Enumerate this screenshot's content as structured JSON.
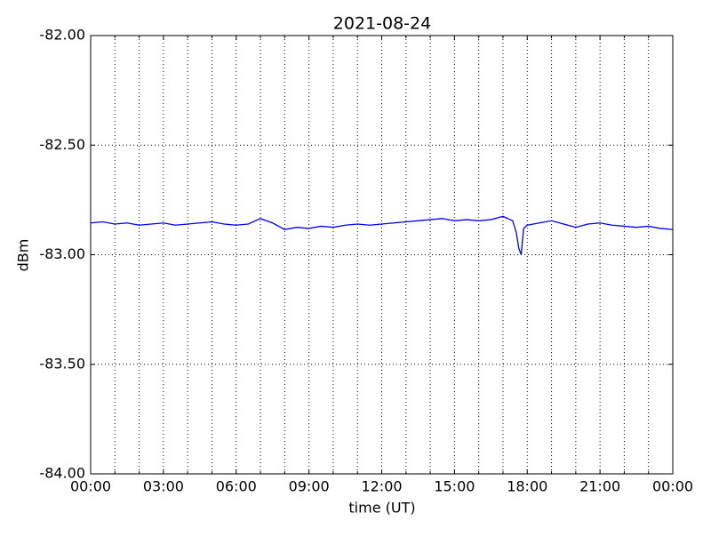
{
  "chart_data": {
    "type": "line",
    "title": "2021-08-24",
    "x_label": "time (UT)",
    "y_label": "dBm",
    "x": [
      0,
      0.5,
      1,
      1.5,
      2,
      2.5,
      3,
      3.5,
      4,
      4.5,
      5,
      5.5,
      6,
      6.5,
      7,
      7.5,
      8,
      8.5,
      9,
      9.5,
      10,
      10.5,
      11,
      11.5,
      12,
      12.5,
      13,
      13.5,
      14,
      14.5,
      15,
      15.5,
      16,
      16.5,
      17,
      17.4,
      17.55,
      17.65,
      17.75,
      17.85,
      18,
      18.5,
      19,
      19.5,
      20,
      20.5,
      21,
      21.5,
      22,
      22.5,
      23,
      23.5,
      24
    ],
    "series": [
      {
        "name": "dBm",
        "color": "#0000ff",
        "values": [
          -82.855,
          -82.85,
          -82.86,
          -82.855,
          -82.865,
          -82.86,
          -82.855,
          -82.865,
          -82.86,
          -82.855,
          -82.85,
          -82.86,
          -82.865,
          -82.86,
          -82.835,
          -82.855,
          -82.885,
          -82.875,
          -82.88,
          -82.87,
          -82.875,
          -82.865,
          -82.86,
          -82.865,
          -82.86,
          -82.855,
          -82.85,
          -82.845,
          -82.84,
          -82.835,
          -82.845,
          -82.84,
          -82.845,
          -82.84,
          -82.825,
          -82.845,
          -82.9,
          -82.97,
          -83.0,
          -82.88,
          -82.865,
          -82.855,
          -82.845,
          -82.86,
          -82.875,
          -82.86,
          -82.855,
          -82.865,
          -82.87,
          -82.875,
          -82.87,
          -82.88,
          -82.885
        ]
      }
    ],
    "xlim": [
      0,
      24
    ],
    "xticks": [
      {
        "value": 0,
        "label": "00:00"
      },
      {
        "value": 3,
        "label": "03:00"
      },
      {
        "value": 6,
        "label": "06:00"
      },
      {
        "value": 9,
        "label": "09:00"
      },
      {
        "value": 12,
        "label": "12:00"
      },
      {
        "value": 15,
        "label": "15:00"
      },
      {
        "value": 18,
        "label": "18:00"
      },
      {
        "value": 21,
        "label": "21:00"
      },
      {
        "value": 24,
        "label": "00:00"
      }
    ],
    "xminor_ticks": [
      1,
      2,
      4,
      5,
      7,
      8,
      10,
      11,
      13,
      14,
      16,
      17,
      19,
      20,
      22,
      23
    ],
    "ylim": [
      -84,
      -82
    ],
    "yticks": [
      {
        "value": -84,
        "label": "-84.00"
      },
      {
        "value": -83.5,
        "label": "-83.50"
      },
      {
        "value": -83,
        "label": "-83.00"
      },
      {
        "value": -82.5,
        "label": "-82.50"
      },
      {
        "value": -82,
        "label": "-82.00"
      }
    ],
    "grid": true
  }
}
